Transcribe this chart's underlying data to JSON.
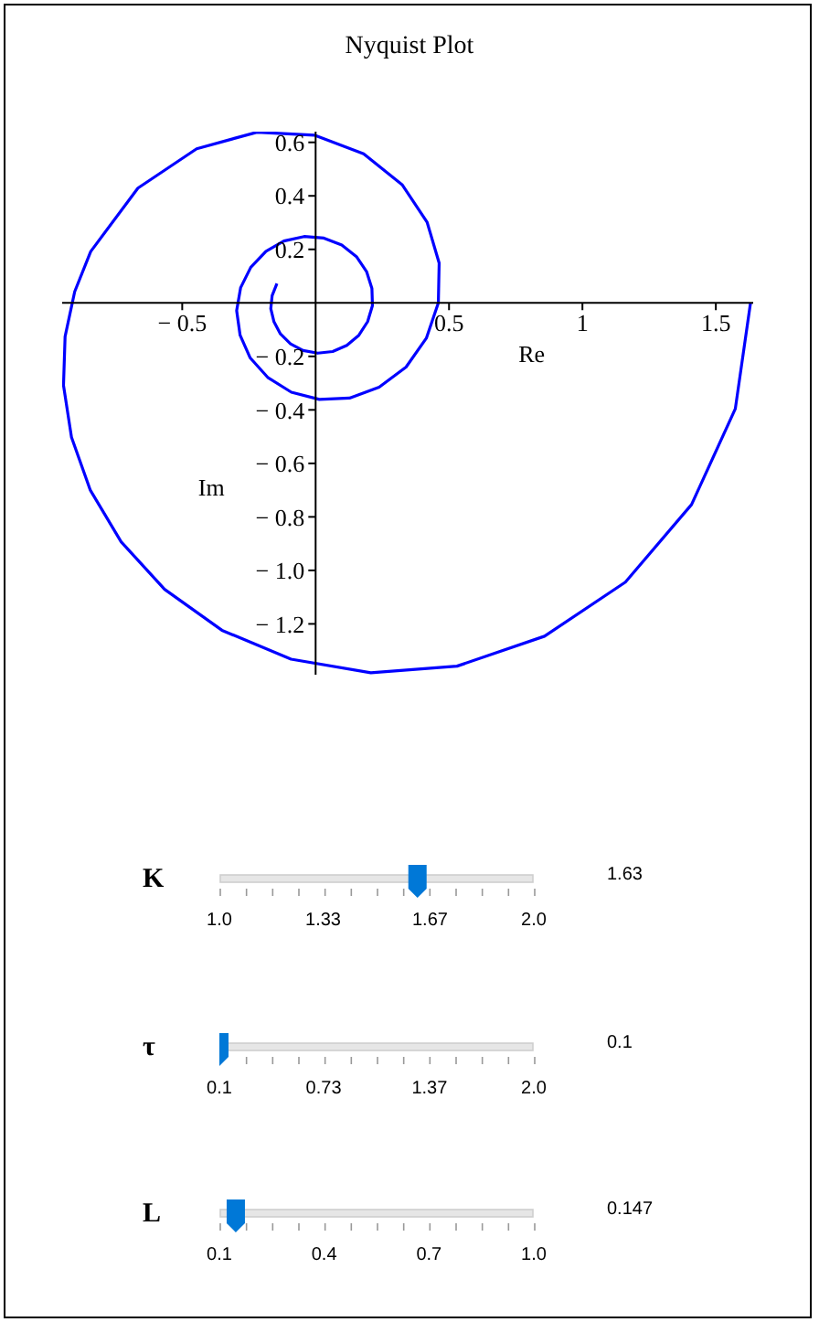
{
  "chart_data": [
    {
      "type": "line",
      "title": "Nyquist Plot",
      "xlabel": "Re",
      "ylabel": "Im",
      "xlim": [
        -0.95,
        1.64
      ],
      "ylim": [
        -1.39,
        0.64
      ],
      "xticks": [
        {
          "value": -0.5,
          "label": "− 0.5"
        },
        0.5,
        1,
        1.5
      ],
      "yticks": [
        0.6,
        0.4,
        0.2,
        {
          "value": -0.2,
          "label": "− 0.2"
        },
        {
          "value": -0.4,
          "label": "− 0.4"
        },
        {
          "value": -0.6,
          "label": "− 0.6"
        },
        {
          "value": -0.8,
          "label": "− 0.8"
        },
        {
          "value": -1,
          "label": "− 1.0"
        },
        {
          "value": -1.2,
          "label": "− 1.2"
        }
      ],
      "series": [
        {
          "color": "#0000ff",
          "x": [
            1.63,
            1.573,
            1.409,
            1.161,
            0.858,
            0.53,
            0.207,
            -0.092,
            -0.351,
            -0.566,
            -0.729,
            -0.845,
            -0.915,
            -0.945,
            -0.939,
            -0.903,
            -0.843,
            -0.666,
            -0.446,
            -0.22,
            -0.005,
            0.18,
            0.324,
            0.418,
            0.463,
            0.46,
            0.415,
            0.339,
            0.238,
            0.127,
            0.014,
            -0.091,
            -0.178,
            -0.245,
            -0.283,
            -0.296,
            -0.281,
            -0.243,
            -0.186,
            -0.119,
            -0.043,
            0.031,
            0.098,
            0.153,
            0.191,
            0.211,
            0.213,
            0.195,
            0.162,
            0.117,
            0.064,
            0.008,
            -0.047,
            -0.094,
            -0.132,
            -0.156,
            -0.168,
            -0.163,
            -0.145
          ],
          "values": [
            0,
            -0.396,
            -0.754,
            -1.044,
            -1.246,
            -1.358,
            -1.383,
            -1.332,
            -1.224,
            -1.071,
            -0.893,
            -0.699,
            -0.502,
            -0.308,
            -0.126,
            0.042,
            0.192,
            0.429,
            0.576,
            0.638,
            0.627,
            0.557,
            0.442,
            0.301,
            0.149,
            0,
            -0.132,
            -0.24,
            -0.315,
            -0.356,
            -0.361,
            -0.334,
            -0.28,
            -0.206,
            -0.121,
            -0.029,
            0.057,
            0.133,
            0.193,
            0.231,
            0.248,
            0.242,
            0.216,
            0.173,
            0.117,
            0.054,
            -0.01,
            -0.07,
            -0.121,
            -0.159,
            -0.182,
            -0.188,
            -0.178,
            -0.153,
            -0.116,
            -0.071,
            -0.022,
            0.027,
            0.072
          ]
        }
      ]
    },
    {
      "type": "scatter",
      "orientation": "horizontal",
      "categories": [
        "K"
      ],
      "xlim": [
        1,
        2
      ],
      "xticks": [
        {
          "value": 1,
          "label": "1.0"
        },
        1.33,
        1.67,
        {
          "value": 2,
          "label": "2.0"
        }
      ],
      "values": [
        1.63
      ],
      "annotations": [
        "1.63"
      ],
      "color": "#0078d7"
    },
    {
      "type": "scatter",
      "orientation": "horizontal",
      "categories": [
        "τ"
      ],
      "xlim": [
        0.1,
        2
      ],
      "xticks": [
        0.1,
        0.73,
        1.37,
        {
          "value": 2,
          "label": "2.0"
        }
      ],
      "values": [
        0.1
      ],
      "annotations": [
        "0.1"
      ],
      "color": "#0078d7"
    },
    {
      "type": "scatter",
      "orientation": "horizontal",
      "categories": [
        "L"
      ],
      "xlim": [
        0.1,
        1
      ],
      "xticks": [
        0.1,
        0.4,
        0.7,
        {
          "value": 1,
          "label": "1.0"
        }
      ],
      "values": [
        0.147
      ],
      "annotations": [
        "0.147"
      ],
      "color": "#0078d7"
    }
  ]
}
